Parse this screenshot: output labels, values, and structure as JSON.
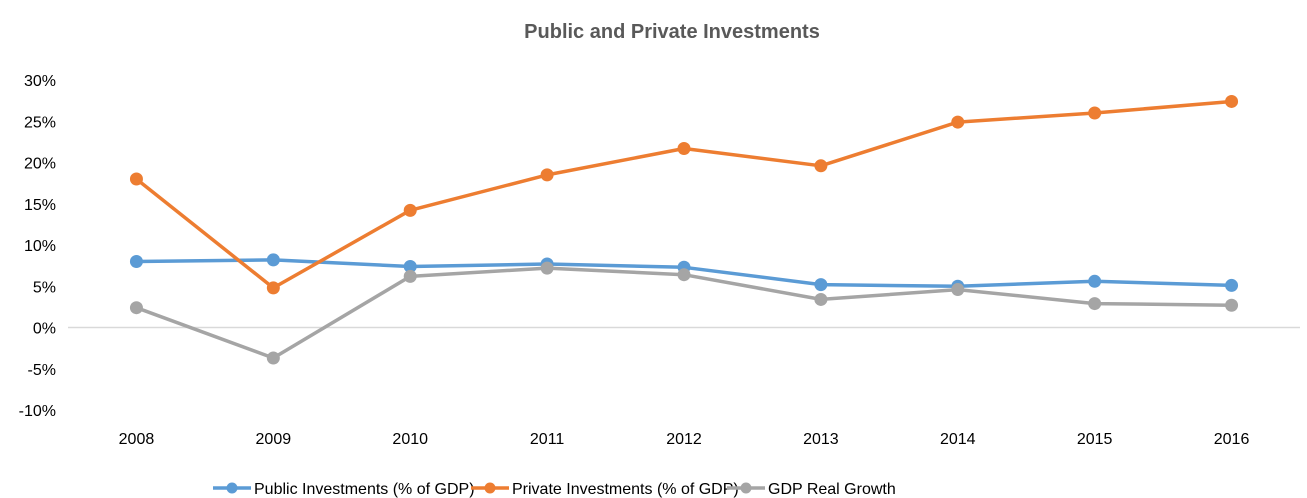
{
  "chart_data": {
    "type": "line",
    "title": "Public and Private Investments",
    "xlabel": "",
    "ylabel": "",
    "categories": [
      "2008",
      "2009",
      "2010",
      "2011",
      "2012",
      "2013",
      "2014",
      "2015",
      "2016"
    ],
    "ylim": [
      -10,
      30
    ],
    "yticks": [
      30,
      25,
      20,
      15,
      10,
      5,
      0,
      -5,
      -10
    ],
    "ytick_labels": [
      "30%",
      "25%",
      "20%",
      "15%",
      "10%",
      "5%",
      "0%",
      "-5%",
      "-10%"
    ],
    "grid": false,
    "legend_position": "bottom",
    "series": [
      {
        "name": "Public Investments (% of GDP)",
        "color": "#5B9BD5",
        "values": [
          8.0,
          8.2,
          7.4,
          7.7,
          7.3,
          5.2,
          5.0,
          5.6,
          5.1
        ]
      },
      {
        "name": "Private Investments (% of GDP)",
        "color": "#ED7D31",
        "values": [
          18.0,
          4.8,
          14.2,
          18.5,
          21.7,
          19.6,
          24.9,
          26.0,
          27.4
        ]
      },
      {
        "name": "GDP Real Growth",
        "color": "#A5A5A5",
        "values": [
          2.4,
          -3.7,
          6.2,
          7.2,
          6.4,
          3.4,
          4.6,
          2.9,
          2.7
        ]
      }
    ]
  }
}
